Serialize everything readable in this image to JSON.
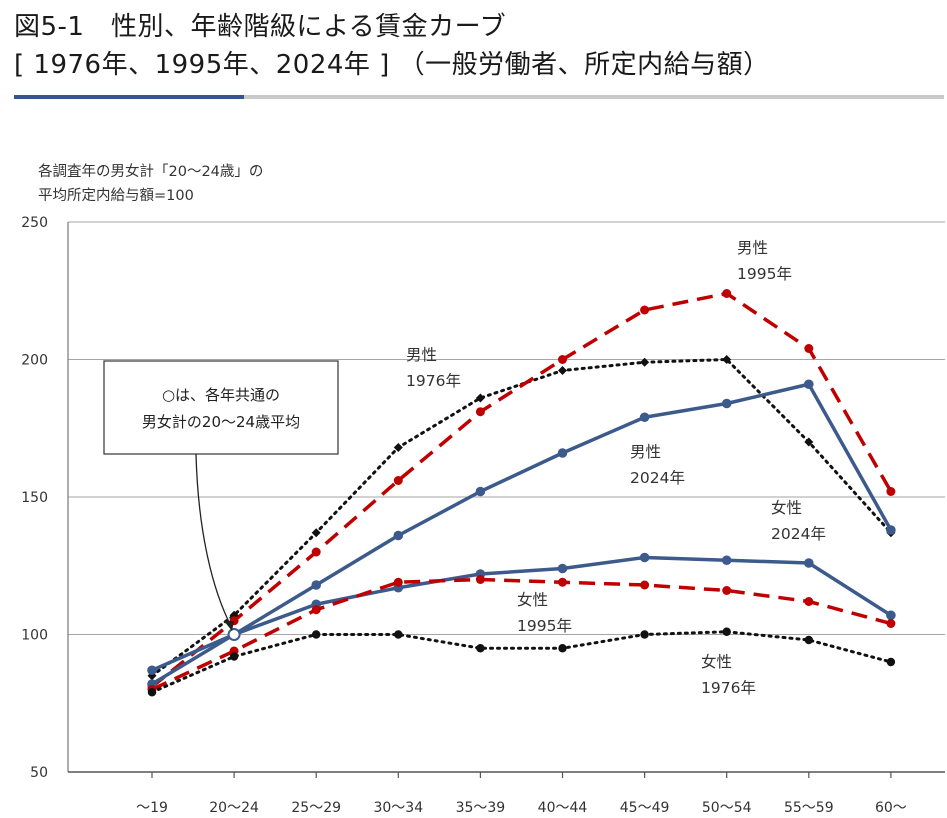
{
  "header": {
    "title_line1": "図5-1　性別、年齢階級による賃金カーブ",
    "title_line2": "[ 1976年、1995年、2024年 ] （一般労働者、所定内給与額）"
  },
  "chart_data": {
    "type": "line",
    "ylabel_lines": [
      "各調査年の男女計「20～24歳」の",
      "平均所定内給与額=100"
    ],
    "ylim": [
      50,
      250
    ],
    "yticks": [
      50,
      100,
      150,
      200,
      250
    ],
    "grid": true,
    "categories": [
      "～19",
      "20～24",
      "25～29",
      "30～34",
      "35～39",
      "40～44",
      "45～49",
      "50～54",
      "55～59",
      "60～"
    ],
    "series": [
      {
        "key": "m1976",
        "label_lines": [
          "男性",
          "1976年"
        ],
        "color": "#111111",
        "style": "dotted",
        "marker": "diamond",
        "values": [
          85,
          107,
          137,
          168,
          186,
          196,
          199,
          200,
          170,
          137
        ]
      },
      {
        "key": "m1995",
        "label_lines": [
          "男性",
          "1995年"
        ],
        "color": "#c00000",
        "style": "dashed",
        "marker": "circle",
        "values": [
          81,
          105,
          130,
          156,
          181,
          200,
          218,
          224,
          204,
          152
        ]
      },
      {
        "key": "m2024",
        "label_lines": [
          "男性",
          "2024年"
        ],
        "color": "#3c5a8c",
        "style": "solid",
        "marker": "circle",
        "values": [
          87,
          100,
          118,
          136,
          152,
          166,
          179,
          184,
          191,
          138
        ]
      },
      {
        "key": "f2024",
        "label_lines": [
          "女性",
          "2024年"
        ],
        "color": "#3c5a8c",
        "style": "solid",
        "marker": "circle",
        "values": [
          82,
          100,
          111,
          117,
          122,
          124,
          128,
          127,
          126,
          107
        ]
      },
      {
        "key": "f1995",
        "label_lines": [
          "女性",
          "1995年"
        ],
        "color": "#c00000",
        "style": "dashed",
        "marker": "circle",
        "values": [
          80,
          94,
          109,
          119,
          120,
          119,
          118,
          116,
          112,
          104
        ]
      },
      {
        "key": "f1976",
        "label_lines": [
          "女性",
          "1976年"
        ],
        "color": "#111111",
        "style": "dotted",
        "marker": "circle",
        "values": [
          79,
          92,
          100,
          100,
          95,
          95,
          100,
          101,
          98,
          90
        ]
      }
    ],
    "common_point": {
      "category": "20～24",
      "value": 100
    },
    "annotation": {
      "lines": [
        "○は、各年共通の",
        "男女計の20～24歳平均"
      ]
    }
  }
}
